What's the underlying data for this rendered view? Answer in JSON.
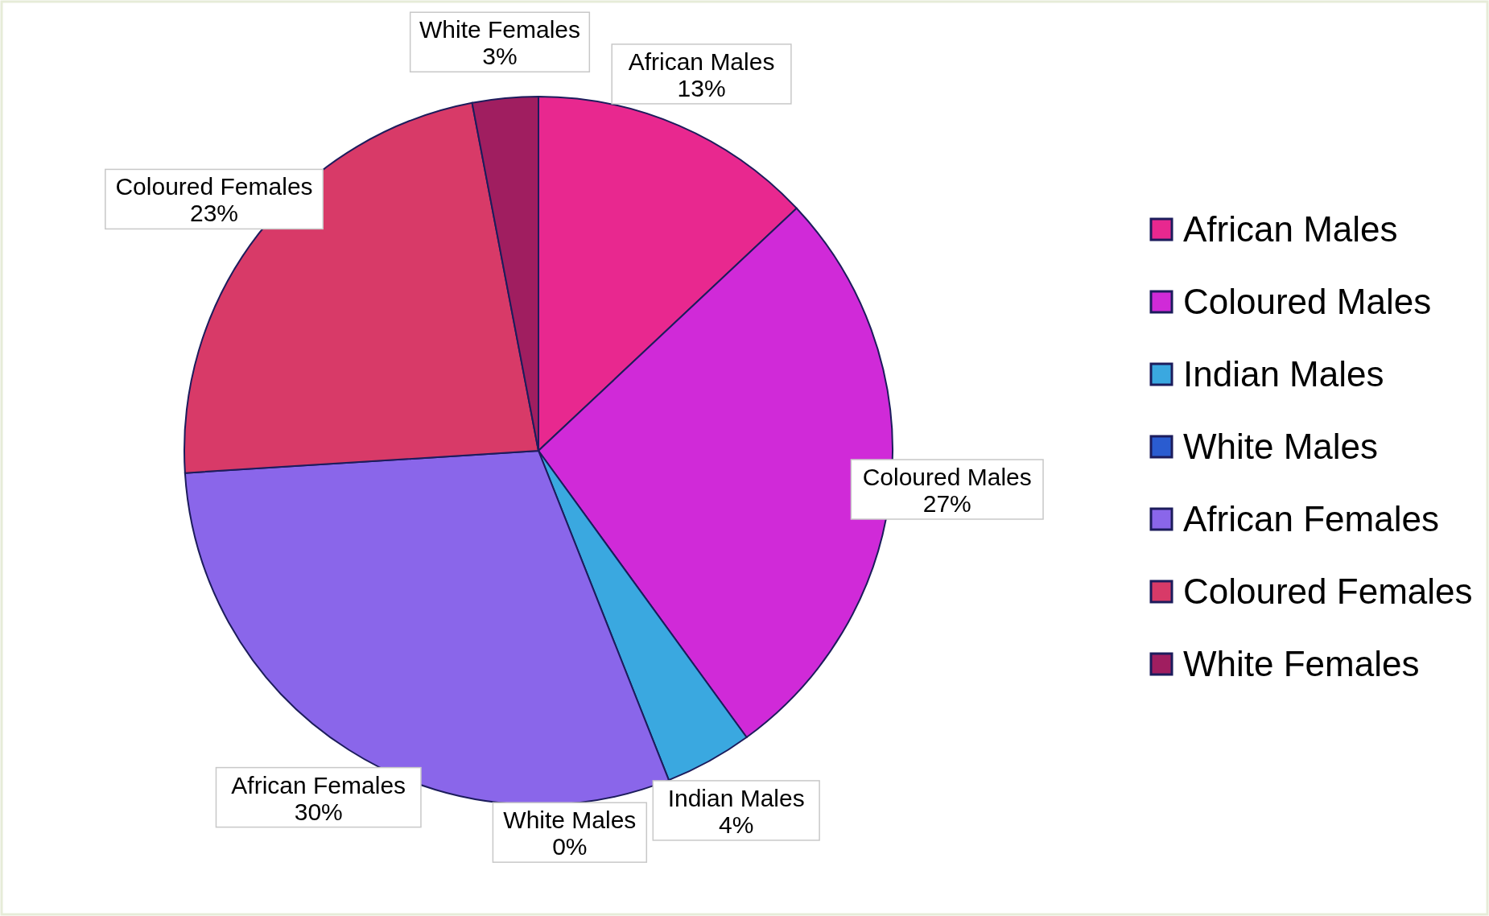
{
  "chart_data": {
    "type": "pie",
    "categories": [
      "African Males",
      "Coloured Males",
      "Indian Males",
      "White Males",
      "African Females",
      "Coloured Females",
      "White Females"
    ],
    "values": [
      13,
      27,
      4,
      0,
      30,
      23,
      3
    ],
    "value_labels": [
      "13%",
      "27%",
      "4%",
      "0%",
      "30%",
      "23%",
      "3%"
    ],
    "colors": [
      "#e8288f",
      "#d02ad8",
      "#3aa8e0",
      "#2a5cd0",
      "#8a66ea",
      "#d83a68",
      "#a01e60"
    ],
    "legend": "right"
  }
}
